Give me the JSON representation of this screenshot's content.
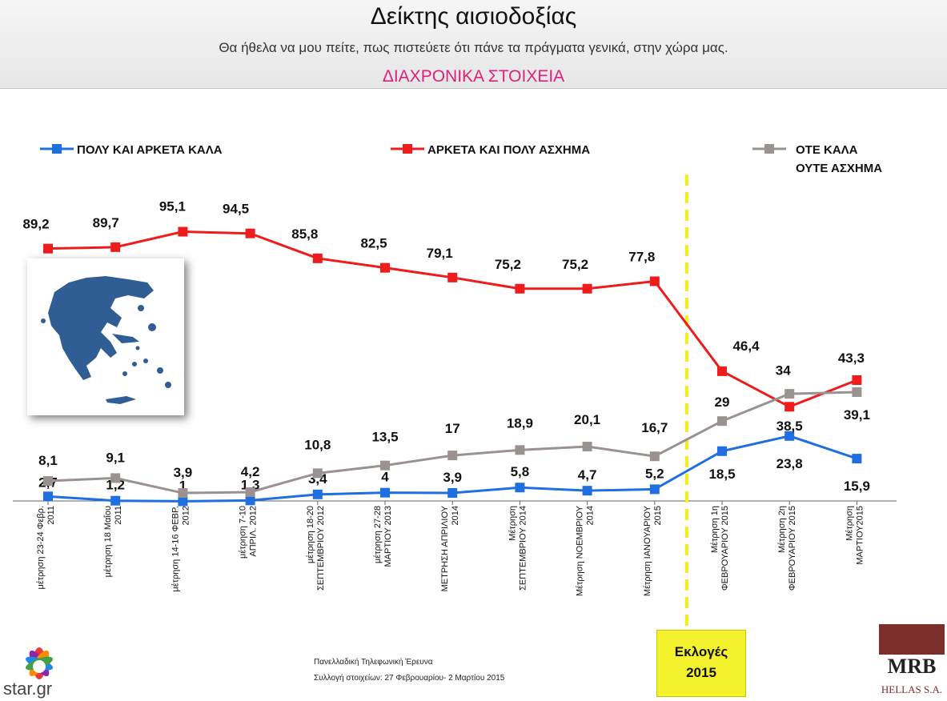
{
  "header": {
    "title": "Δείκτης αισιοδοξίας",
    "subtitle": "Θα ήθελα να μου πείτε, πως πιστεύετε ότι πάνε τα πράγματα γενικά, στην χώρα μας.",
    "section": "ΔΙΑΧΡΟΝΙΚΑ ΣΤΟΙΧΕΙΑ"
  },
  "colors": {
    "good": "#1f6fe0",
    "bad": "#ee1c1c",
    "neutral": "#9a9290",
    "election_line": "#f2ee22",
    "section": "#e0207c"
  },
  "chart_data": {
    "type": "line",
    "categories": [
      [
        "μέτρηση 23-24 Φεβρ.",
        "2011"
      ],
      [
        "μέτρηση 18 Μαΐου",
        "2011"
      ],
      [
        "μέτρηση 14-16 ΦΕΒΡ.",
        "2012"
      ],
      [
        "μέτρηση 7-10",
        "ΑΠΡΙΛ. 2012"
      ],
      [
        "μέτρηση 18-20",
        "ΣΕΠΤΕΜΒΡΙΟΥ 2012"
      ],
      [
        "μέτρηση 27-28",
        "ΜΑΡΤΙΟΥ 2013"
      ],
      [
        "ΜΕΤΡΗΣΗ ΑΠΡΙΛΙΟΥ",
        "2014"
      ],
      [
        "Μέτρηση",
        "ΣΕΠΤΕΜΒΡΙΟΥ 2014"
      ],
      [
        "Μέτρηση ΝΟΕΜΒΡΙΟΥ",
        "2014"
      ],
      [
        "Μέτρηση ΙΑΝΟΥΑΡΙΟΥ",
        "2015"
      ],
      [
        "Μέτρηση 1η",
        "ΦΕΒΡΟΥΑΡΙΟΥ 2015"
      ],
      [
        "Μέτρηση 2η",
        "ΦΕΒΡΟΥΑΡΙΟΥ 2015"
      ],
      [
        "Μέτρηση",
        "ΜΑΡΤΙΟΥ2015"
      ]
    ],
    "series": [
      {
        "name": "ΠΟΛΥ ΚΑΙ ΑΡΚΕΤΑ ΚΑΛΑ",
        "color_key": "good",
        "values": [
          2.7,
          1.2,
          1,
          1.3,
          3.4,
          4,
          3.9,
          5.8,
          4.7,
          5.2,
          18.5,
          23.8,
          15.9
        ],
        "labels": [
          "2,7",
          "1,2",
          "1",
          "1,3",
          "3,4",
          "4",
          "3,9",
          "5,8",
          "4,7",
          "5,2",
          "18,5",
          "23,8",
          "15,9"
        ]
      },
      {
        "name": "ΑΡΚΕΤΑ ΚΑΙ ΠΟΛΥ ΑΣΧΗΜΑ",
        "color_key": "bad",
        "values": [
          89.2,
          89.7,
          95.1,
          94.5,
          85.8,
          82.5,
          79.1,
          75.2,
          75.2,
          77.8,
          46.4,
          34,
          43.3
        ],
        "labels": [
          "89,2",
          "89,7",
          "95,1",
          "94,5",
          "85,8",
          "82,5",
          "79,1",
          "75,2",
          "75,2",
          "77,8",
          "46,4",
          "34",
          "43,3"
        ]
      },
      {
        "name": "ΟΤΕ ΚΑΛΑ ΟΥΤΕ ΑΣΧΗΜΑ",
        "name_lines": [
          "ΟΤΕ ΚΑΛΑ",
          "ΟΥΤΕ ΑΣΧΗΜΑ"
        ],
        "color_key": "neutral",
        "values": [
          8.1,
          9.1,
          3.9,
          4.2,
          10.8,
          13.5,
          17,
          18.9,
          20.1,
          16.7,
          29,
          38.5,
          39.1
        ],
        "labels": [
          "8,1",
          "9,1",
          "3,9",
          "4,2",
          "10,8",
          "13,5",
          "17",
          "18,9",
          "20,1",
          "16,7",
          "29",
          "38,5",
          "39,1"
        ]
      }
    ],
    "election_marker": {
      "between": [
        9,
        10
      ],
      "label_lines": [
        "Εκλογές",
        "2015"
      ]
    },
    "legend_placement": "top",
    "grid": false
  },
  "footer": {
    "source_lines": [
      "Πανελλαδική  Τηλεφωνική Έρευνα",
      "Συλλογή στοιχείων: 27 Φεβρουαρίου- 2 Μαρτίου  2015"
    ],
    "star_logo": "star.gr",
    "mrb_logo": "MRB",
    "mrb_sub": "HELLAS S.A."
  },
  "icons": {
    "map": "greece-map-icon",
    "star": "star-channel-logo-icon",
    "mrb": "mrb-logo-icon"
  }
}
